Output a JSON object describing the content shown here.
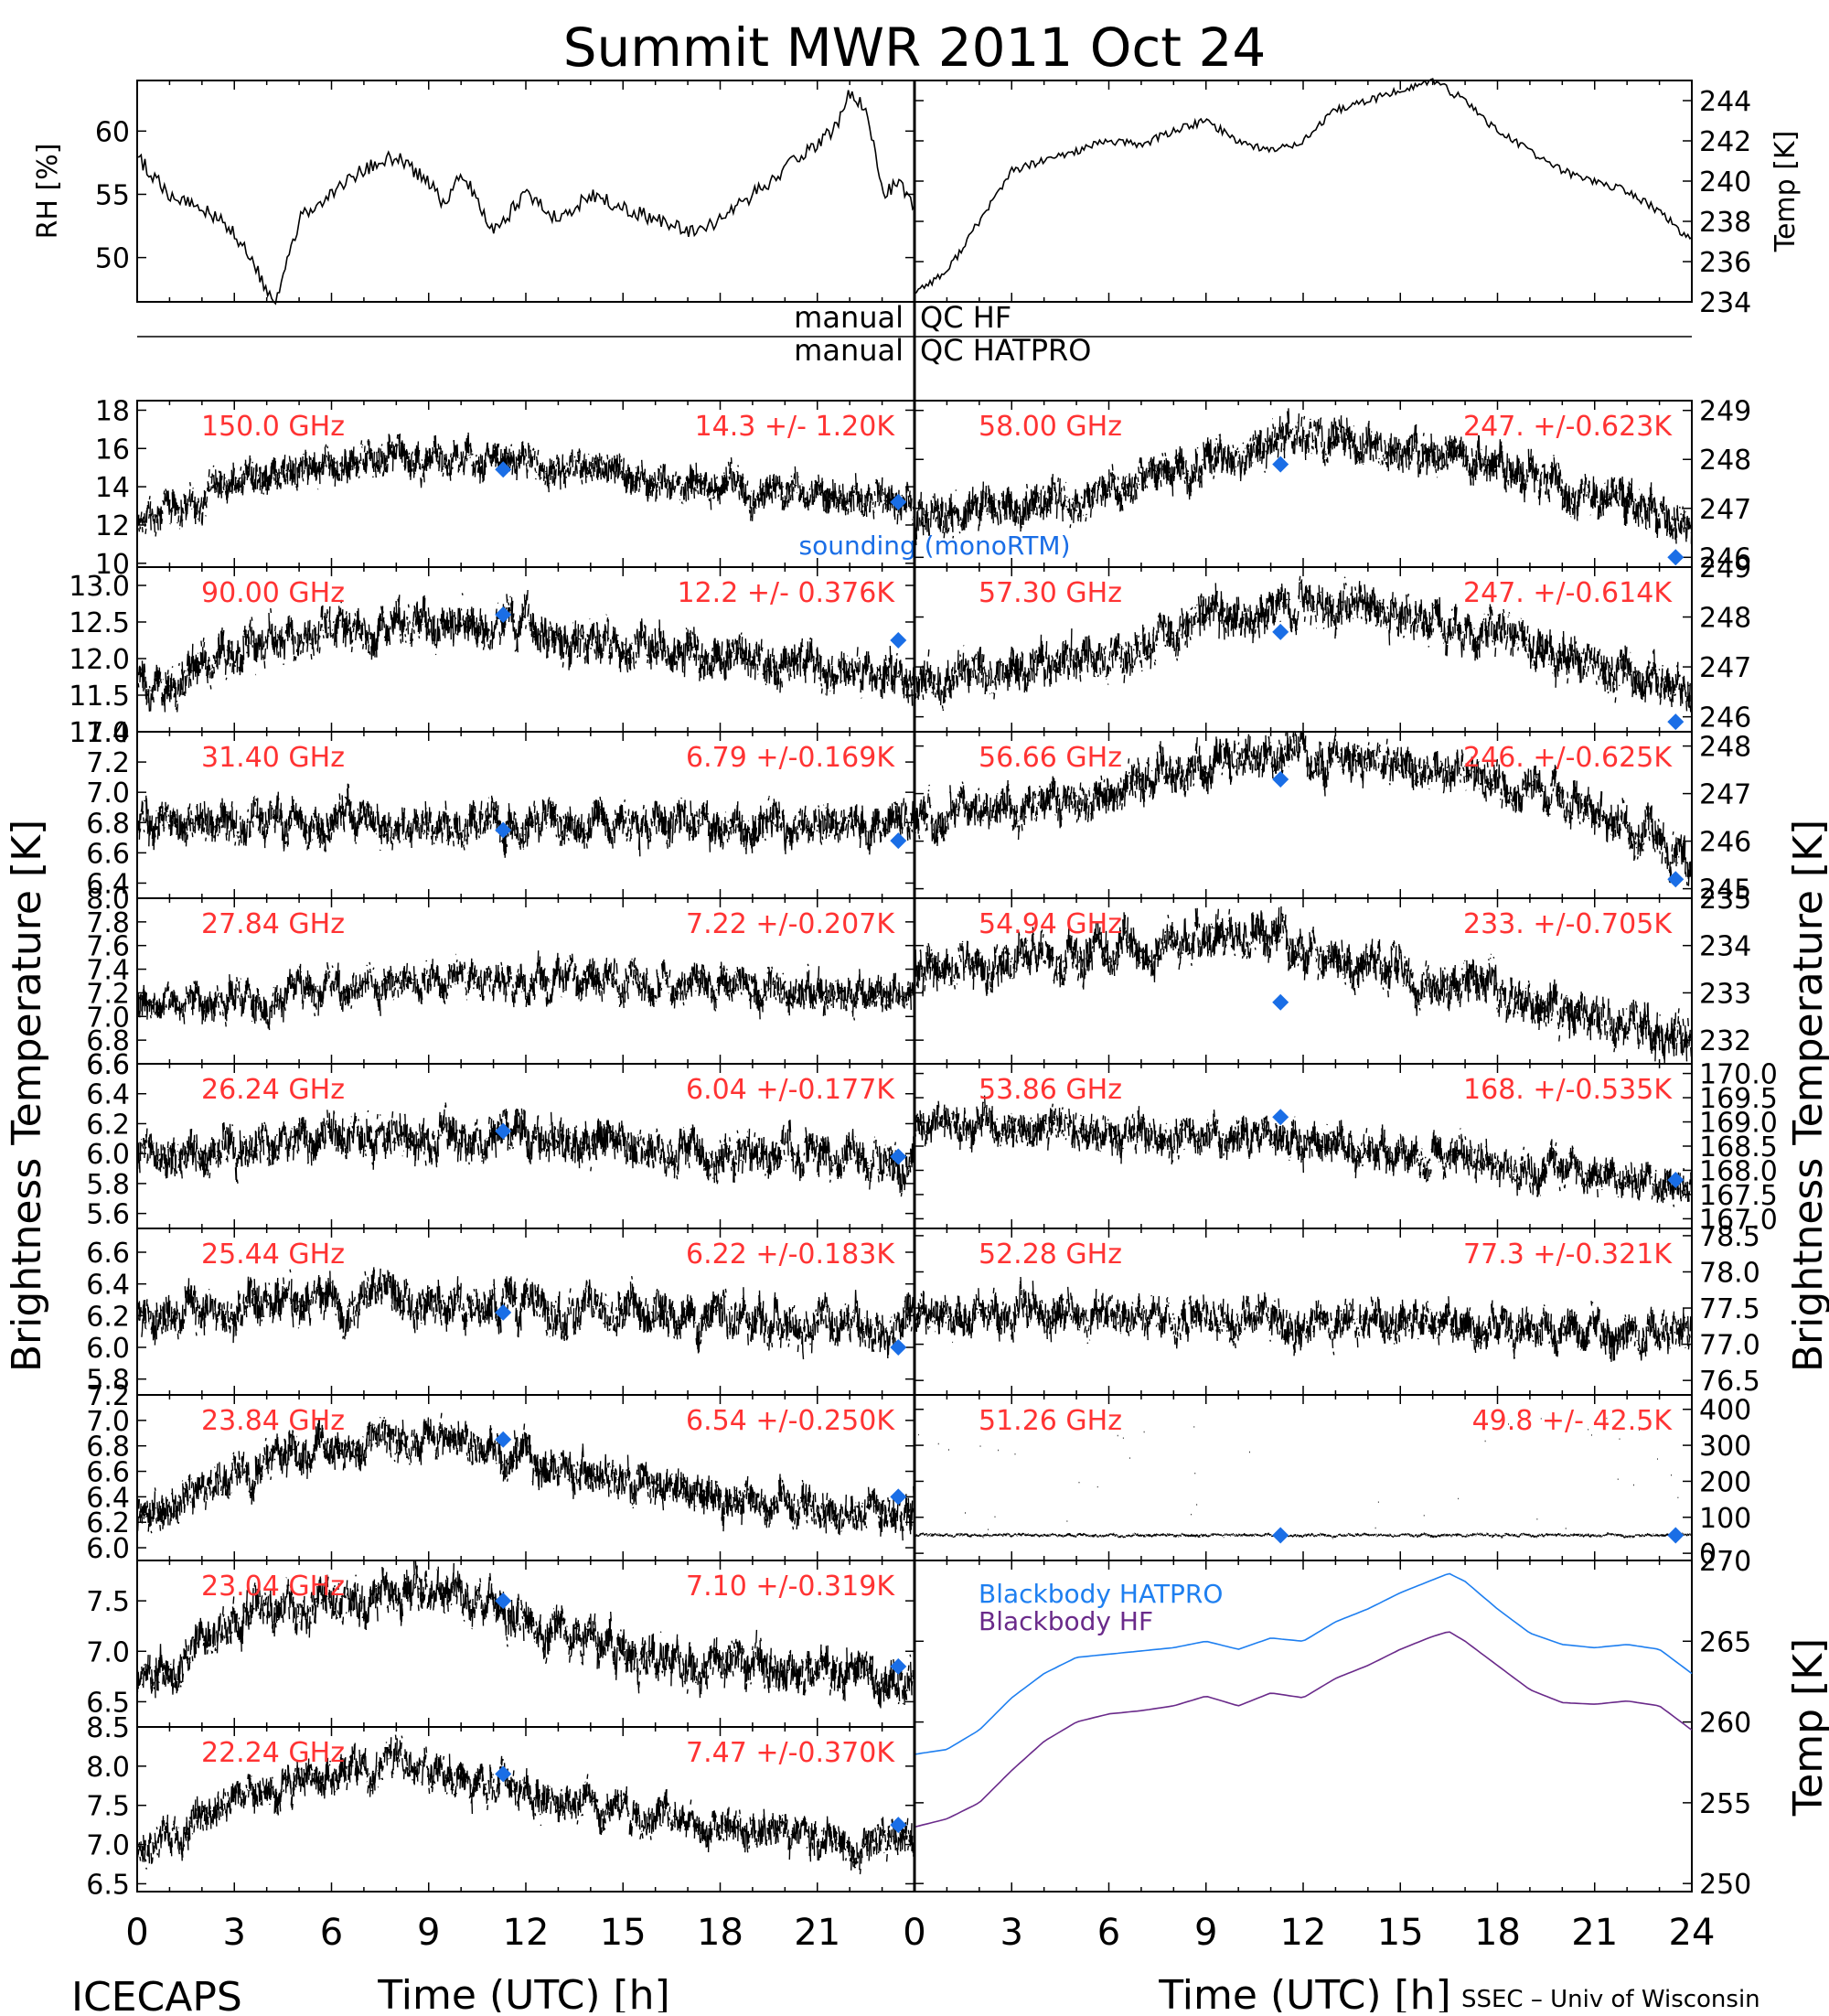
{
  "title": "Summit MWR 2011 Oct 24",
  "footer_left": "ICECAPS",
  "footer_right": "SSEC – Univ of Wisconsin",
  "colors": {
    "trace": "#000000",
    "label": "#ff3333",
    "sounding": "#1a6ee6",
    "bb_hatpro": "#1e7ff0",
    "bb_hf": "#6a2a8a"
  },
  "qc": {
    "left_top": "manual",
    "right_top": "QC HF",
    "left_bottom": "manual",
    "right_bottom": "QC HATPRO"
  },
  "axes": {
    "x_label": "Time (UTC) [h]",
    "x_ticks": [
      "0",
      "3",
      "6",
      "9",
      "12",
      "15",
      "18",
      "21",
      "24"
    ],
    "x_ticks_right": [
      "0",
      "3",
      "6",
      "9",
      "12",
      "15",
      "18",
      "21",
      "24"
    ],
    "left_ylabel": "Brightness Temperature [K]",
    "right_ylabel": "Brightness Temperature [K]",
    "bb_ylabel": "Temp [K]"
  },
  "chart_data": [
    {
      "type": "line",
      "panel": "rh",
      "ylabel": "RH [%]",
      "xlim": [
        0,
        24
      ],
      "ylim": [
        46.5,
        64.0
      ],
      "yticks": [
        50,
        55,
        60
      ],
      "series": [
        {
          "x": [
            0,
            1,
            2,
            3,
            3.5,
            4,
            4.3,
            5,
            6,
            7,
            8,
            9,
            9.5,
            10,
            11,
            12,
            13,
            14,
            15,
            16,
            17,
            18,
            19,
            20,
            21,
            21.5,
            22,
            22.5,
            23,
            23.5,
            24
          ],
          "values": [
            58,
            55,
            54,
            52,
            50,
            47.5,
            46.8,
            53,
            55,
            57,
            58,
            56,
            54,
            57,
            52,
            55,
            53,
            55,
            54,
            53,
            52,
            53,
            55,
            57,
            59,
            60,
            63,
            62,
            55,
            56,
            54
          ]
        }
      ]
    },
    {
      "type": "line",
      "panel": "temp",
      "ylabel": "Temp [K]",
      "xlim": [
        0,
        24
      ],
      "ylim": [
        234,
        245
      ],
      "yticks": [
        234,
        236,
        238,
        240,
        242,
        244
      ],
      "series": [
        {
          "x": [
            0,
            1,
            2,
            3,
            4,
            5,
            6,
            7,
            8,
            9,
            10,
            11,
            12,
            13,
            14,
            15,
            16,
            17,
            18,
            19,
            20,
            21,
            22,
            23,
            24
          ],
          "values": [
            234.5,
            235.5,
            238,
            240.5,
            241,
            241.5,
            242,
            241.8,
            242.5,
            243,
            242,
            241.5,
            242,
            243.5,
            244,
            244.5,
            245,
            244,
            242.5,
            241.5,
            240.5,
            240,
            239.5,
            238.5,
            237
          ]
        }
      ]
    },
    {
      "type": "scatter",
      "panel": "L0",
      "channel": "150.0 GHz",
      "stat": "14.3 +/-  1.20K",
      "ylim": [
        9.8,
        18.5
      ],
      "yticks": [
        10,
        12,
        14,
        16,
        18
      ],
      "noise": 1.2,
      "trend": {
        "x": [
          0,
          3,
          6,
          9,
          12,
          15,
          18,
          21,
          24
        ],
        "y": [
          12,
          14.2,
          15.3,
          15.4,
          15.2,
          14.6,
          13.8,
          13.5,
          13.3
        ]
      },
      "sounding": [
        {
          "x": 11.3,
          "y": 14.9
        },
        {
          "x": 23.5,
          "y": 13.2
        }
      ],
      "note": "sounding (monoRTM)"
    },
    {
      "type": "scatter",
      "panel": "L1",
      "channel": "90.00 GHz",
      "stat": "12.2 +/- 0.376K",
      "ylim": [
        11.0,
        13.25
      ],
      "yticks": [
        11.0,
        11.5,
        12.0,
        12.5,
        13.0
      ],
      "noise": 0.38,
      "trend": {
        "x": [
          0,
          3,
          6,
          9,
          12,
          15,
          18,
          21,
          24
        ],
        "y": [
          11.6,
          12.1,
          12.4,
          12.5,
          12.4,
          12.2,
          12.0,
          11.9,
          11.8
        ]
      },
      "sounding": [
        {
          "x": 11.3,
          "y": 12.6
        },
        {
          "x": 23.5,
          "y": 12.25
        }
      ]
    },
    {
      "type": "scatter",
      "panel": "L2",
      "channel": "31.40 GHz",
      "stat": "6.79 +/-0.169K",
      "ylim": [
        6.3,
        7.4
      ],
      "yticks": [
        6.4,
        6.6,
        6.8,
        7.0,
        7.2,
        7.4
      ],
      "noise": 0.17,
      "trend": {
        "x": [
          0,
          24
        ],
        "y": [
          6.8,
          6.8
        ]
      },
      "sounding": [
        {
          "x": 11.3,
          "y": 6.75
        },
        {
          "x": 23.5,
          "y": 6.68
        }
      ]
    },
    {
      "type": "scatter",
      "panel": "L3",
      "channel": "27.84 GHz",
      "stat": "7.22 +/-0.207K",
      "ylim": [
        6.6,
        8.0
      ],
      "yticks": [
        6.6,
        6.8,
        7.0,
        7.2,
        7.4,
        7.6,
        7.8,
        8.0
      ],
      "noise": 0.2,
      "trend": {
        "x": [
          0,
          6,
          12,
          18,
          24
        ],
        "y": [
          7.05,
          7.25,
          7.3,
          7.25,
          7.15
        ]
      },
      "sounding": []
    },
    {
      "type": "scatter",
      "panel": "L4",
      "channel": "26.24 GHz",
      "stat": "6.04 +/-0.177K",
      "ylim": [
        5.5,
        6.6
      ],
      "yticks": [
        5.6,
        5.8,
        6.0,
        6.2,
        6.4,
        6.6
      ],
      "noise": 0.18,
      "trend": {
        "x": [
          0,
          6,
          12,
          18,
          24
        ],
        "y": [
          6.0,
          6.1,
          6.1,
          6.0,
          5.95
        ]
      },
      "sounding": [
        {
          "x": 11.3,
          "y": 6.15
        },
        {
          "x": 23.5,
          "y": 5.98
        }
      ]
    },
    {
      "type": "scatter",
      "panel": "L5",
      "channel": "25.44 GHz",
      "stat": "6.22 +/-0.183K",
      "ylim": [
        5.7,
        6.75
      ],
      "yticks": [
        5.8,
        6.0,
        6.2,
        6.4,
        6.6
      ],
      "noise": 0.18,
      "trend": {
        "x": [
          0,
          6,
          12,
          18,
          24
        ],
        "y": [
          6.2,
          6.3,
          6.25,
          6.15,
          6.1
        ]
      },
      "sounding": [
        {
          "x": 11.3,
          "y": 6.22
        },
        {
          "x": 23.5,
          "y": 6.0
        }
      ]
    },
    {
      "type": "scatter",
      "panel": "L6",
      "channel": "23.84 GHz",
      "stat": "6.54 +/-0.250K",
      "ylim": [
        5.9,
        7.2
      ],
      "yticks": [
        6.0,
        6.2,
        6.4,
        6.6,
        6.8,
        7.0,
        7.2
      ],
      "noise": 0.2,
      "trend": {
        "x": [
          0,
          3,
          6,
          9,
          12,
          15,
          18,
          21,
          24
        ],
        "y": [
          6.2,
          6.6,
          6.8,
          6.9,
          6.7,
          6.5,
          6.4,
          6.3,
          6.3
        ]
      },
      "sounding": [
        {
          "x": 11.3,
          "y": 6.85
        },
        {
          "x": 23.5,
          "y": 6.4
        }
      ]
    },
    {
      "type": "scatter",
      "panel": "L7",
      "channel": "23.04 GHz",
      "stat": "7.10 +/-0.319K",
      "ylim": [
        6.25,
        7.9
      ],
      "yticks": [
        6.5,
        7.0,
        7.5
      ],
      "noise": 0.28,
      "trend": {
        "x": [
          0,
          3,
          6,
          9,
          12,
          15,
          18,
          21,
          24
        ],
        "y": [
          6.6,
          7.3,
          7.5,
          7.6,
          7.3,
          7.0,
          6.9,
          6.8,
          6.7
        ]
      },
      "sounding": [
        {
          "x": 11.3,
          "y": 7.5
        },
        {
          "x": 23.5,
          "y": 6.85
        }
      ]
    },
    {
      "type": "scatter",
      "panel": "L8",
      "channel": "22.24 GHz",
      "stat": "7.47 +/-0.370K",
      "ylim": [
        6.4,
        8.5
      ],
      "yticks": [
        6.5,
        7.0,
        7.5,
        8.0,
        8.5
      ],
      "noise": 0.3,
      "trend": {
        "x": [
          0,
          3,
          6,
          9,
          12,
          15,
          18,
          21,
          24
        ],
        "y": [
          6.8,
          7.6,
          7.9,
          8.0,
          7.7,
          7.4,
          7.2,
          7.1,
          7.0
        ]
      },
      "sounding": [
        {
          "x": 11.3,
          "y": 7.9
        },
        {
          "x": 23.5,
          "y": 7.25
        }
      ]
    },
    {
      "type": "scatter",
      "panel": "R0",
      "channel": "58.00 GHz",
      "stat": "247. +/-0.623K",
      "ylim": [
        245.8,
        249.2
      ],
      "yticks": [
        246,
        247,
        248,
        249
      ],
      "noise": 0.55,
      "trend": {
        "x": [
          0,
          3,
          6,
          9,
          12,
          15,
          18,
          21,
          23,
          24
        ],
        "y": [
          246.8,
          247.0,
          247.3,
          248.0,
          248.5,
          248.2,
          247.9,
          247.3,
          246.9,
          246.5
        ]
      },
      "sounding": [
        {
          "x": 11.3,
          "y": 247.9
        },
        {
          "x": 23.5,
          "y": 246.0
        }
      ]
    },
    {
      "type": "scatter",
      "panel": "R1",
      "channel": "57.30 GHz",
      "stat": "247. +/-0.614K",
      "ylim": [
        245.7,
        249.0
      ],
      "yticks": [
        246,
        247,
        248,
        249
      ],
      "noise": 0.55,
      "trend": {
        "x": [
          0,
          3,
          6,
          9,
          12,
          15,
          18,
          21,
          23,
          24
        ],
        "y": [
          246.7,
          246.9,
          247.2,
          247.9,
          248.3,
          248.0,
          247.6,
          247.1,
          246.7,
          246.3
        ]
      },
      "sounding": [
        {
          "x": 11.3,
          "y": 247.7
        },
        {
          "x": 23.5,
          "y": 245.9
        }
      ]
    },
    {
      "type": "scatter",
      "panel": "R2",
      "channel": "56.66 GHz",
      "stat": "246. +/-0.625K",
      "ylim": [
        244.8,
        248.3
      ],
      "yticks": [
        245,
        246,
        247,
        248
      ],
      "noise": 0.55,
      "trend": {
        "x": [
          0,
          3,
          6,
          9,
          12,
          15,
          18,
          21,
          23,
          24
        ],
        "y": [
          246.5,
          246.7,
          247.0,
          247.7,
          247.8,
          247.6,
          247.2,
          246.6,
          246.1,
          245.5
        ]
      },
      "sounding": [
        {
          "x": 11.3,
          "y": 247.3
        },
        {
          "x": 23.5,
          "y": 245.2
        }
      ]
    },
    {
      "type": "scatter",
      "panel": "R3",
      "channel": "54.94 GHz",
      "stat": "233. +/-0.705K",
      "ylim": [
        231.5,
        235.0
      ],
      "yticks": [
        232,
        233,
        234,
        235
      ],
      "noise": 0.6,
      "trend": {
        "x": [
          0,
          3,
          6,
          9,
          12,
          15,
          18,
          21,
          24
        ],
        "y": [
          233.5,
          233.7,
          233.9,
          234.2,
          233.8,
          233.4,
          232.9,
          232.5,
          232.0
        ]
      },
      "sounding": [
        {
          "x": 11.3,
          "y": 232.8
        }
      ]
    },
    {
      "type": "scatter",
      "panel": "R4",
      "channel": "53.86 GHz",
      "stat": "168. +/-0.535K",
      "ylim": [
        166.8,
        170.2
      ],
      "yticks": [
        167,
        167.5,
        168,
        168.5,
        169,
        169.5,
        170
      ],
      "noise": 0.5,
      "trend": {
        "x": [
          0,
          6,
          12,
          18,
          24
        ],
        "y": [
          168.9,
          168.8,
          168.6,
          168.2,
          167.6
        ]
      },
      "sounding": [
        {
          "x": 11.3,
          "y": 169.1
        },
        {
          "x": 23.5,
          "y": 167.8
        }
      ]
    },
    {
      "type": "scatter",
      "panel": "R5",
      "channel": "52.28 GHz",
      "stat": "77.3 +/-0.321K",
      "ylim": [
        76.3,
        78.6
      ],
      "yticks": [
        76.5,
        77.0,
        77.5,
        78.0,
        78.5
      ],
      "noise": 0.35,
      "trend": {
        "x": [
          0,
          6,
          12,
          18,
          24
        ],
        "y": [
          77.4,
          77.4,
          77.3,
          77.2,
          77.1
        ]
      },
      "sounding": []
    },
    {
      "type": "scatter",
      "panel": "R6",
      "channel": "51.26 GHz",
      "stat": "49.8 +/-  42.5K",
      "ylim": [
        -20,
        440
      ],
      "yticks": [
        0,
        100,
        200,
        300,
        400
      ],
      "noise": 6,
      "trend": {
        "x": [
          0,
          24
        ],
        "y": [
          50,
          50
        ]
      },
      "sounding": [
        {
          "x": 11.3,
          "y": 50
        },
        {
          "x": 23.5,
          "y": 50
        }
      ]
    },
    {
      "type": "line",
      "panel": "blackbody",
      "ylabel": "Temp [K]",
      "xlim": [
        0,
        24
      ],
      "ylim": [
        249.5,
        270
      ],
      "yticks": [
        250,
        255,
        260,
        265,
        270
      ],
      "series": [
        {
          "name": "Blackbody HATPRO",
          "x": [
            0,
            1,
            2,
            3,
            4,
            5,
            6,
            7,
            8,
            9,
            10,
            11,
            12,
            13,
            14,
            15,
            16,
            16.5,
            17,
            18,
            19,
            20,
            21,
            22,
            23,
            24
          ],
          "values": [
            258.0,
            258.3,
            259.5,
            261.5,
            263.0,
            264.0,
            264.2,
            264.4,
            264.6,
            265.0,
            264.5,
            265.2,
            265.0,
            266.2,
            267.0,
            268.0,
            268.8,
            269.2,
            268.7,
            267.0,
            265.5,
            264.8,
            264.6,
            264.8,
            264.5,
            263.0
          ]
        },
        {
          "name": "Blackbody HF",
          "x": [
            0,
            1,
            2,
            3,
            4,
            5,
            6,
            7,
            8,
            9,
            10,
            11,
            12,
            13,
            14,
            15,
            16,
            16.5,
            17,
            18,
            19,
            20,
            21,
            22,
            23,
            24
          ],
          "values": [
            253.5,
            254.0,
            255.0,
            257.0,
            258.8,
            260.0,
            260.5,
            260.7,
            261.0,
            261.6,
            261.0,
            261.8,
            261.5,
            262.7,
            263.5,
            264.5,
            265.3,
            265.6,
            265.0,
            263.5,
            262.0,
            261.2,
            261.1,
            261.3,
            261.0,
            259.5
          ]
        }
      ]
    }
  ]
}
